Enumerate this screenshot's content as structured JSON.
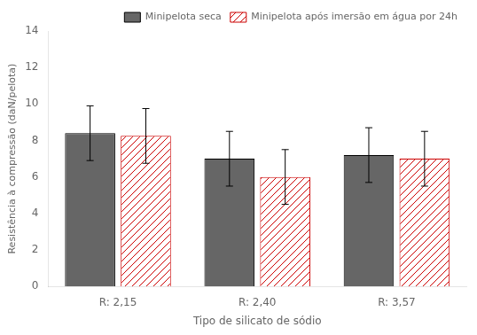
{
  "chart_data": {
    "type": "bar",
    "categories": [
      "R: 2,15",
      "R: 2,40",
      "R: 3,57"
    ],
    "series": [
      {
        "name": "Minipelota seca",
        "color": "#666666",
        "values": [
          8.4,
          7.0,
          7.2
        ],
        "errors": [
          1.5,
          1.5,
          1.5
        ]
      },
      {
        "name": "Minipelota após imersão em água por 24h",
        "color": "#cc0000",
        "values": [
          8.25,
          6.0,
          7.0
        ],
        "errors": [
          1.5,
          1.5,
          1.5
        ]
      }
    ],
    "xlabel": "Tipo de silicato de sódio",
    "ylabel": "Resistência à compressão (daN/pelota)",
    "ylim": [
      0,
      14
    ],
    "yticks": [
      0,
      2,
      4,
      6,
      8,
      10,
      12,
      14
    ],
    "grid": false,
    "legend": "upper right"
  }
}
